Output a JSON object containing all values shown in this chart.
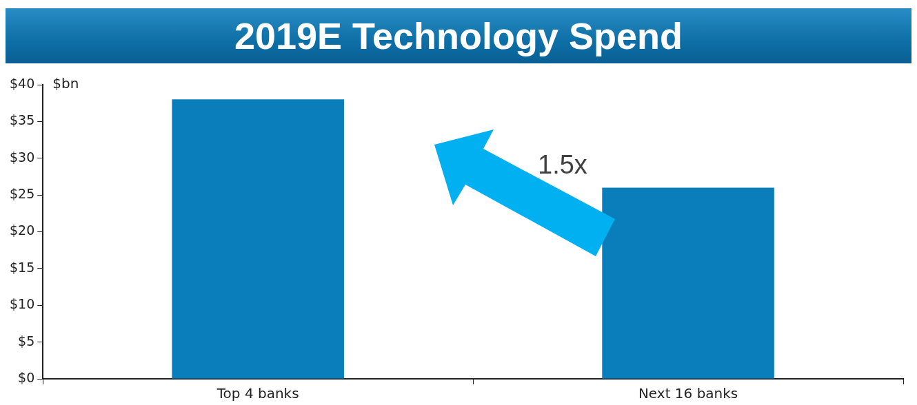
{
  "chart_data": {
    "type": "bar",
    "title": "2019E Technology Spend",
    "ylabel": "$bn",
    "categories": [
      "Top 4 banks",
      "Next 16 banks"
    ],
    "values": [
      38,
      26
    ],
    "color": "#0a7dbb",
    "ylim": [
      0,
      40
    ],
    "yticks": [
      {
        "value": 0,
        "label": "$0"
      },
      {
        "value": 5,
        "label": "$5"
      },
      {
        "value": 10,
        "label": "$10"
      },
      {
        "value": 15,
        "label": "$15"
      },
      {
        "value": 20,
        "label": "$20"
      },
      {
        "value": 25,
        "label": "$25"
      },
      {
        "value": 30,
        "label": "$30"
      },
      {
        "value": 35,
        "label": "$35"
      },
      {
        "value": 40,
        "label": "$40"
      }
    ],
    "grid": false,
    "legend": false,
    "annotations": [
      "1.5x"
    ]
  }
}
